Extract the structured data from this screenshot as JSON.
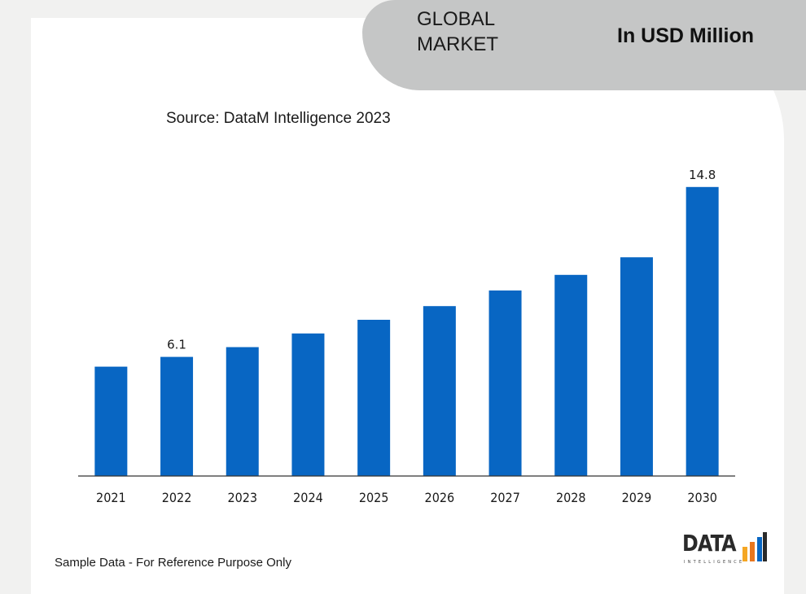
{
  "banner": {
    "title": "GLOBAL\nMARKET",
    "unit": "In USD Million"
  },
  "source": "Source: DataM Intelligence 2023",
  "footnote": "Sample Data - For Reference Purpose Only",
  "logo": {
    "text": "DATA",
    "subtext": "INTELLIGENCE"
  },
  "colors": {
    "bar": "#0866c3",
    "banner": "#c5c6c6",
    "background": "#f1f1f0",
    "logo_accent": "#f5a623"
  },
  "chart_data": {
    "type": "bar",
    "categories": [
      "2021",
      "2022",
      "2023",
      "2024",
      "2025",
      "2026",
      "2027",
      "2028",
      "2029",
      "2030"
    ],
    "values": [
      5.6,
      6.1,
      6.6,
      7.3,
      8.0,
      8.7,
      9.5,
      10.3,
      11.2,
      14.8
    ],
    "data_labels": [
      null,
      "6.1",
      null,
      null,
      null,
      null,
      null,
      null,
      null,
      "14.8"
    ],
    "title": "",
    "xlabel": "",
    "ylabel": "",
    "ylim": [
      0,
      15
    ],
    "grid": false,
    "legend": "none"
  }
}
